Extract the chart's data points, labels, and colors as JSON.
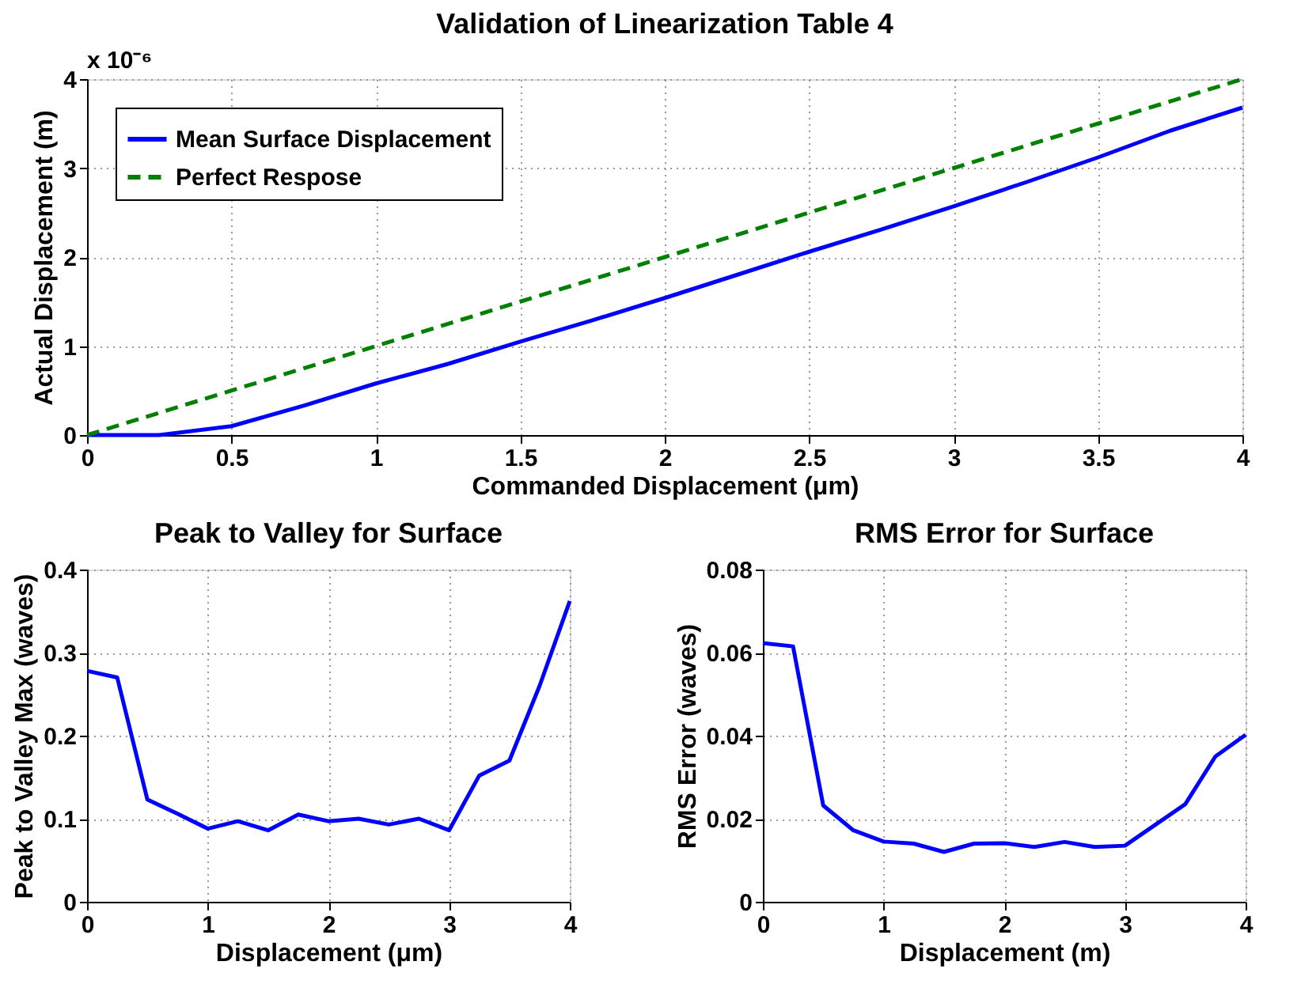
{
  "chart_data": [
    {
      "type": "line",
      "title": "Validation of Linearization Table 4",
      "xlabel": "Commanded Displacement (μm)",
      "ylabel": "Actual Displacement (m)",
      "annotations": [
        "x 10⁻⁶"
      ],
      "x": [
        0,
        0.25,
        0.5,
        0.75,
        1,
        1.25,
        1.5,
        1.75,
        2,
        2.25,
        2.5,
        2.75,
        3,
        3.25,
        3.5,
        3.75,
        4
      ],
      "series": [
        {
          "name": "Mean Surface Displacement",
          "color": "#0000ff",
          "line_style": "solid",
          "values": [
            0,
            0,
            0.1,
            0.33,
            0.58,
            0.8,
            1.05,
            1.29,
            1.54,
            1.8,
            2.06,
            2.31,
            2.57,
            2.84,
            3.12,
            3.42,
            3.68
          ]
        },
        {
          "name": "Perfect Respose",
          "color": "#008000",
          "line_style": "dashed",
          "values": [
            0,
            0.25,
            0.5,
            0.75,
            1,
            1.25,
            1.5,
            1.75,
            2,
            2.25,
            2.5,
            2.75,
            3,
            3.25,
            3.5,
            3.75,
            4
          ]
        }
      ],
      "xlim": [
        0,
        4
      ],
      "ylim": [
        0,
        4
      ],
      "xticks": [
        0,
        0.5,
        1,
        1.5,
        2,
        2.5,
        3,
        3.5,
        4
      ],
      "yticks": [
        0,
        1,
        2,
        3,
        4
      ],
      "grid": true,
      "legend": "top left"
    },
    {
      "type": "line",
      "title": "Peak to Valley for Surface",
      "xlabel": "Displacement (μm)",
      "ylabel": "Peak to Valley Max (waves)",
      "x": [
        0,
        0.25,
        0.5,
        0.75,
        1,
        1.25,
        1.5,
        1.75,
        2,
        2.25,
        2.5,
        2.75,
        3,
        3.25,
        3.5,
        3.75,
        4
      ],
      "series": [
        {
          "color": "#0000ff",
          "line_style": "solid",
          "values": [
            0.278,
            0.27,
            0.123,
            0.106,
            0.088,
            0.097,
            0.086,
            0.105,
            0.097,
            0.1,
            0.093,
            0.1,
            0.086,
            0.152,
            0.17,
            0.26,
            0.362
          ]
        }
      ],
      "xlim": [
        0,
        4
      ],
      "ylim": [
        0,
        0.4
      ],
      "xticks": [
        0,
        1,
        2,
        3,
        4
      ],
      "yticks": [
        0,
        0.1,
        0.2,
        0.3,
        0.4
      ],
      "grid": true
    },
    {
      "type": "line",
      "title": "RMS Error for Surface",
      "xlabel": "Displacement (m)",
      "ylabel": "RMS Error (waves)",
      "x": [
        0,
        0.25,
        0.5,
        0.75,
        1,
        1.25,
        1.5,
        1.75,
        2,
        2.25,
        2.5,
        2.75,
        3,
        3.25,
        3.5,
        3.75,
        4
      ],
      "series": [
        {
          "color": "#0000ff",
          "line_style": "solid",
          "values": [
            0.0623,
            0.0615,
            0.0232,
            0.0172,
            0.0145,
            0.014,
            0.012,
            0.014,
            0.0141,
            0.0132,
            0.0144,
            0.0132,
            0.0135,
            0.0185,
            0.0235,
            0.035,
            0.0402
          ]
        }
      ],
      "xlim": [
        0,
        4
      ],
      "ylim": [
        0,
        0.08
      ],
      "xticks": [
        0,
        1,
        2,
        3,
        4
      ],
      "yticks": [
        0,
        0.02,
        0.04,
        0.06,
        0.08
      ],
      "grid": true
    }
  ]
}
